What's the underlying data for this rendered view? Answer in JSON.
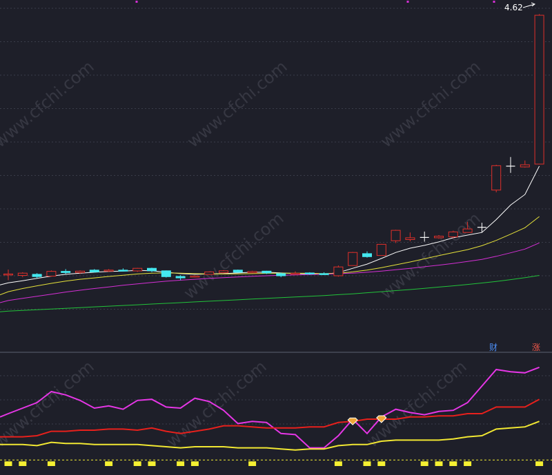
{
  "colors": {
    "background": "#1e1f29",
    "grid": "#3a3d4a",
    "up": "#e0302a",
    "down": "#44e8f0",
    "doji": "#ffffff",
    "ma5": "#ffffff",
    "ma10": "#e6e23a",
    "ma20": "#d62fd6",
    "ma60": "#22c43a",
    "ind_magenta": "#e636e6",
    "ind_red": "#e8201c",
    "ind_yellow": "#f2e832",
    "ind_bars": "#f5f032",
    "marker_fill": "#f0a838",
    "watermark": "#4a4c58"
  },
  "top_panel": {
    "price_label": "4.62",
    "badges": [
      {
        "label": "财",
        "color": "#4d8ef5"
      },
      {
        "label": "涨",
        "color": "#f0584a"
      }
    ]
  },
  "watermark_text": "www.cfchi.com",
  "chart_data": [
    {
      "type": "candlestick",
      "title": "",
      "annotation": "4.62",
      "candles": [
        {
          "o": 3.145,
          "h": 3.175,
          "l": 3.115,
          "c": 3.15
        },
        {
          "o": 3.142,
          "h": 3.16,
          "l": 3.132,
          "c": 3.155
        },
        {
          "o": 3.148,
          "h": 3.155,
          "l": 3.125,
          "c": 3.135
        },
        {
          "o": 3.138,
          "h": 3.17,
          "l": 3.135,
          "c": 3.165
        },
        {
          "o": 3.165,
          "h": 3.178,
          "l": 3.15,
          "c": 3.158
        },
        {
          "o": 3.158,
          "h": 3.17,
          "l": 3.15,
          "c": 3.166
        },
        {
          "o": 3.172,
          "h": 3.178,
          "l": 3.158,
          "c": 3.162
        },
        {
          "o": 3.167,
          "h": 3.178,
          "l": 3.162,
          "c": 3.172
        },
        {
          "o": 3.172,
          "h": 3.182,
          "l": 3.165,
          "c": 3.168
        },
        {
          "o": 3.167,
          "h": 3.185,
          "l": 3.162,
          "c": 3.182
        },
        {
          "o": 3.182,
          "h": 3.186,
          "l": 3.16,
          "c": 3.168
        },
        {
          "o": 3.168,
          "h": 3.17,
          "l": 3.13,
          "c": 3.135
        },
        {
          "o": 3.136,
          "h": 3.143,
          "l": 3.115,
          "c": 3.128
        },
        {
          "o": 3.135,
          "h": 3.142,
          "l": 3.13,
          "c": 3.138
        },
        {
          "o": 3.148,
          "h": 3.165,
          "l": 3.145,
          "c": 3.162
        },
        {
          "o": 3.157,
          "h": 3.172,
          "l": 3.155,
          "c": 3.168
        },
        {
          "o": 3.172,
          "h": 3.175,
          "l": 3.158,
          "c": 3.16
        },
        {
          "o": 3.157,
          "h": 3.168,
          "l": 3.155,
          "c": 3.164
        },
        {
          "o": 3.166,
          "h": 3.168,
          "l": 3.15,
          "c": 3.156
        },
        {
          "o": 3.152,
          "h": 3.158,
          "l": 3.132,
          "c": 3.14
        },
        {
          "o": 3.152,
          "h": 3.165,
          "l": 3.15,
          "c": 3.154
        },
        {
          "o": 3.156,
          "h": 3.16,
          "l": 3.145,
          "c": 3.15
        },
        {
          "o": 3.152,
          "h": 3.16,
          "l": 3.145,
          "c": 3.15
        },
        {
          "o": 3.14,
          "h": 3.198,
          "l": 3.135,
          "c": 3.19
        },
        {
          "o": 3.198,
          "h": 3.275,
          "l": 3.198,
          "c": 3.272
        },
        {
          "o": 3.265,
          "h": 3.278,
          "l": 3.242,
          "c": 3.248
        },
        {
          "o": 3.255,
          "h": 3.32,
          "l": 3.255,
          "c": 3.318
        },
        {
          "o": 3.338,
          "h": 3.4,
          "l": 3.325,
          "c": 3.397
        },
        {
          "o": 3.345,
          "h": 3.385,
          "l": 3.335,
          "c": 3.355
        },
        {
          "o": 3.357,
          "h": 3.39,
          "l": 3.333,
          "c": 3.357
        },
        {
          "o": 3.355,
          "h": 3.37,
          "l": 3.35,
          "c": 3.364
        },
        {
          "o": 3.36,
          "h": 3.395,
          "l": 3.352,
          "c": 3.388
        },
        {
          "o": 3.385,
          "h": 3.445,
          "l": 3.385,
          "c": 3.405
        },
        {
          "o": 3.414,
          "h": 3.44,
          "l": 3.384,
          "c": 3.414
        },
        {
          "o": 3.625,
          "h": 3.768,
          "l": 3.612,
          "c": 3.763
        },
        {
          "o": 3.76,
          "h": 3.812,
          "l": 3.722,
          "c": 3.76
        },
        {
          "o": 3.756,
          "h": 3.792,
          "l": 3.752,
          "c": 3.768
        },
        {
          "o": 3.772,
          "h": 4.62,
          "l": 3.772,
          "c": 4.614
        }
      ],
      "ma": [
        {
          "name": "",
          "color": "#ffffff",
          "values": [
            3.1,
            3.112,
            3.125,
            3.138,
            3.148,
            3.155,
            3.16,
            3.164,
            3.166,
            3.17,
            3.168,
            3.16,
            3.152,
            3.148,
            3.15,
            3.152,
            3.156,
            3.16,
            3.16,
            3.156,
            3.152,
            3.15,
            3.148,
            3.158,
            3.182,
            3.206,
            3.238,
            3.272,
            3.296,
            3.312,
            3.332,
            3.355,
            3.37,
            3.385,
            3.458,
            3.54,
            3.6,
            3.76
          ]
        },
        {
          "name": "",
          "color": "#e6e23a",
          "values": [
            3.05,
            3.068,
            3.083,
            3.097,
            3.11,
            3.12,
            3.128,
            3.136,
            3.143,
            3.15,
            3.155,
            3.156,
            3.155,
            3.152,
            3.15,
            3.15,
            3.151,
            3.152,
            3.154,
            3.155,
            3.155,
            3.154,
            3.152,
            3.155,
            3.162,
            3.172,
            3.186,
            3.202,
            3.218,
            3.236,
            3.254,
            3.271,
            3.288,
            3.31,
            3.34,
            3.375,
            3.412,
            3.475
          ]
        },
        {
          "name": "",
          "color": "#d62fd6",
          "values": [
            3.0,
            3.012,
            3.024,
            3.036,
            3.048,
            3.058,
            3.068,
            3.077,
            3.086,
            3.094,
            3.102,
            3.109,
            3.115,
            3.12,
            3.125,
            3.129,
            3.133,
            3.137,
            3.14,
            3.143,
            3.145,
            3.147,
            3.149,
            3.152,
            3.155,
            3.16,
            3.166,
            3.174,
            3.182,
            3.191,
            3.2,
            3.21,
            3.221,
            3.233,
            3.25,
            3.27,
            3.291,
            3.326
          ]
        },
        {
          "name": "",
          "color": "#22c43a",
          "values": [
            2.94,
            2.944,
            2.948,
            2.952,
            2.956,
            2.96,
            2.964,
            2.968,
            2.972,
            2.976,
            2.98,
            2.984,
            2.988,
            2.992,
            2.996,
            3.0,
            3.004,
            3.008,
            3.012,
            3.016,
            3.02,
            3.024,
            3.028,
            3.033,
            3.038,
            3.044,
            3.05,
            3.056,
            3.062,
            3.069,
            3.076,
            3.083,
            3.091,
            3.099,
            3.108,
            3.118,
            3.129,
            3.142
          ]
        }
      ],
      "ylim": [
        2.75,
        4.7
      ]
    },
    {
      "type": "line",
      "title": "",
      "ylim": [
        0,
        100
      ],
      "series": [
        {
          "name": "",
          "color": "#e636e6",
          "values": [
            50,
            55,
            60,
            70,
            67,
            62,
            55,
            57,
            54,
            62,
            63,
            56,
            55,
            64,
            61,
            53,
            41,
            43,
            42,
            32,
            31,
            19,
            19,
            30,
            45,
            32,
            47,
            54,
            51,
            49,
            52,
            53,
            60,
            75,
            90,
            88,
            87,
            92
          ]
        },
        {
          "name": "",
          "color": "#e8201c",
          "values": [
            29,
            29,
            30,
            34,
            34,
            35,
            35,
            36,
            36,
            35,
            37,
            34,
            32,
            34,
            36,
            39,
            39,
            38,
            37,
            37,
            37,
            38,
            38,
            42,
            43,
            45,
            45,
            45,
            47,
            47,
            48,
            48,
            50,
            50,
            56,
            56,
            56,
            63
          ]
        },
        {
          "name": "",
          "color": "#f2e832",
          "values": [
            22,
            22,
            21,
            24,
            23,
            23,
            22,
            22,
            22,
            22,
            21,
            20,
            19,
            20,
            20,
            20,
            19,
            19,
            19,
            18,
            17,
            18,
            18,
            21,
            22,
            22,
            25,
            26,
            26,
            26,
            26,
            27,
            29,
            30,
            36,
            37,
            38,
            43
          ]
        }
      ],
      "dashed_level": 8,
      "signal_bars": [
        1,
        1,
        0,
        1,
        0,
        0,
        0,
        1,
        0,
        1,
        1,
        0,
        1,
        1,
        0,
        0,
        0,
        1,
        0,
        0,
        0,
        0,
        0,
        1,
        0,
        1,
        1,
        0,
        0,
        1,
        1,
        1,
        1,
        0,
        0,
        0,
        0,
        1
      ],
      "markers": [
        24,
        26
      ]
    }
  ]
}
